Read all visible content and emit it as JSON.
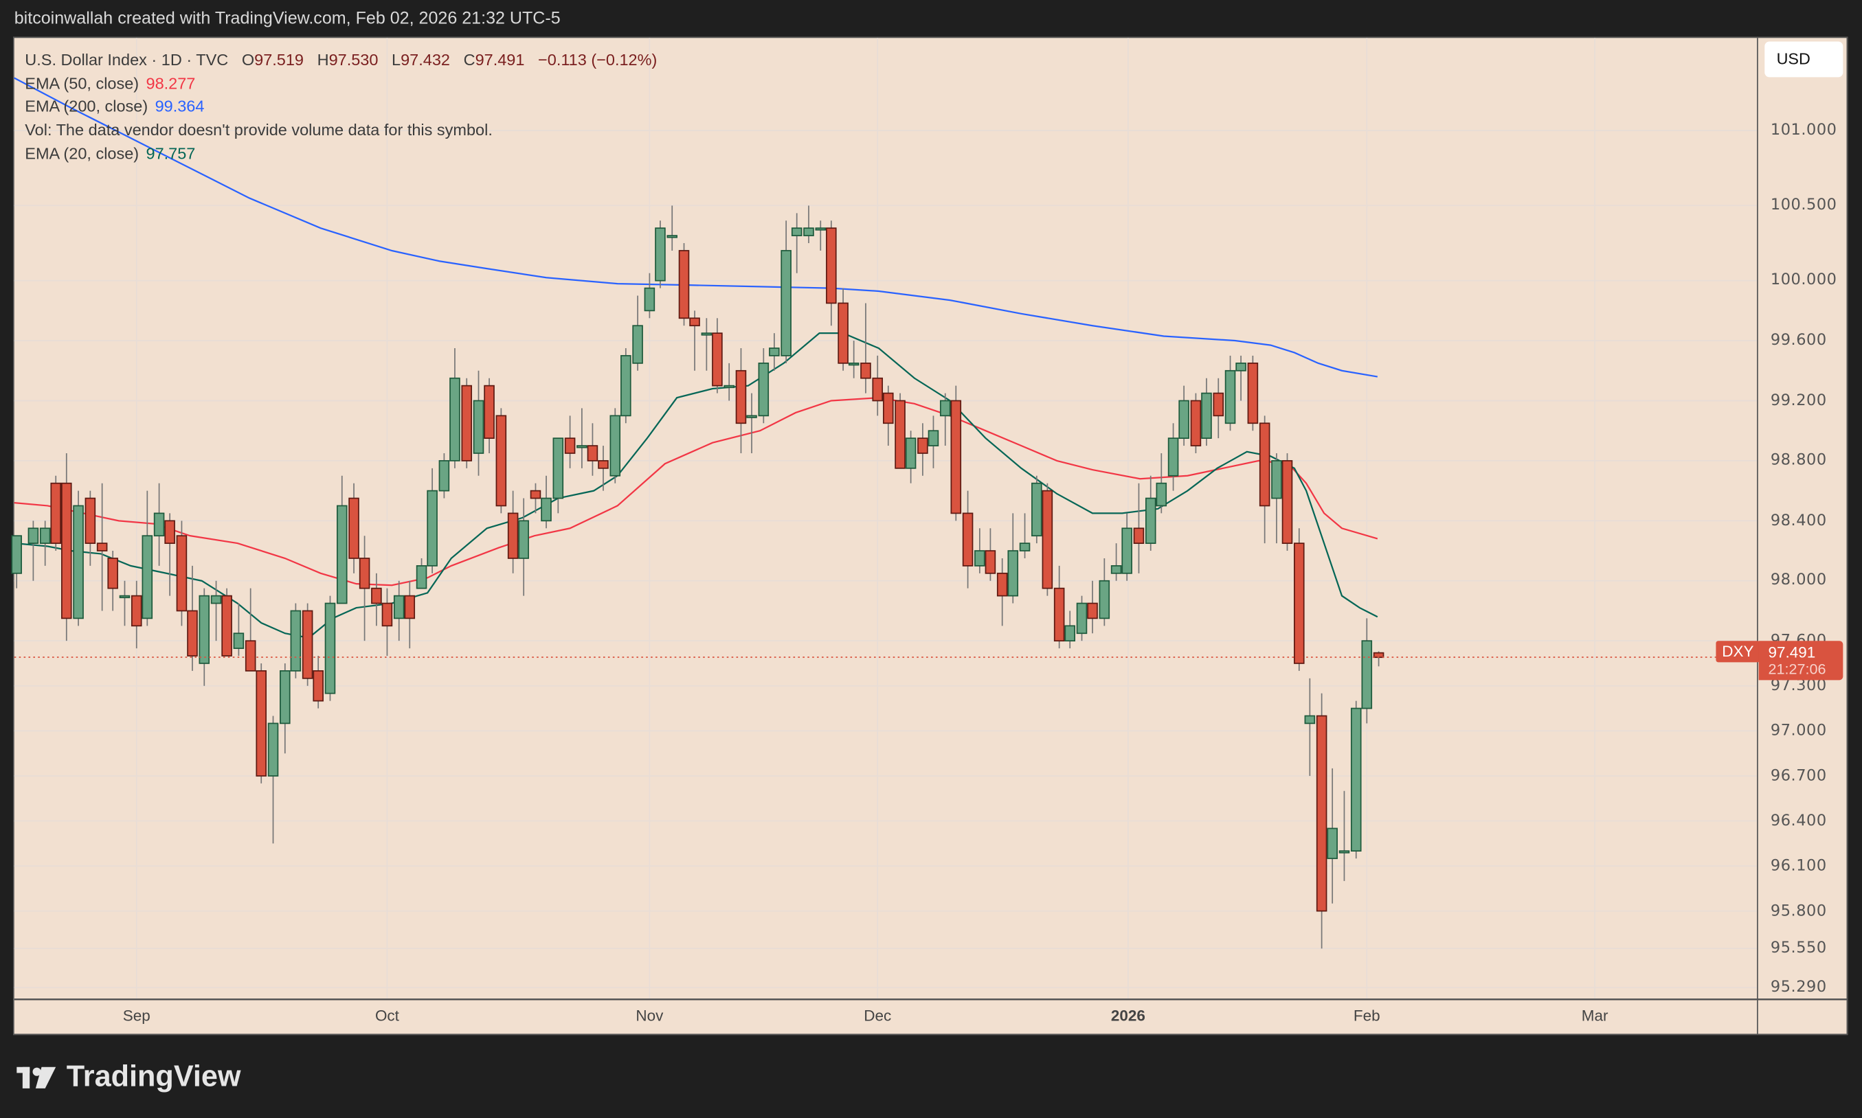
{
  "credit": "bitcoinwallah created with TradingView.com, Feb 02, 2026 21:32 UTC-5",
  "legend": {
    "symbol": "U.S. Dollar Index · 1D · TVC",
    "open_label": "O",
    "open": "97.519",
    "high_label": "H",
    "high": "97.530",
    "low_label": "L",
    "low": "97.432",
    "close_label": "C",
    "close": "97.491",
    "change": "−0.113 (−0.12%)",
    "ema50_label": "EMA (50, close)",
    "ema50_value": "98.277",
    "ema200_label": "EMA (200, close)",
    "ema200_value": "99.364",
    "vol_text": "Vol: The data vendor doesn't provide volume data for this symbol.",
    "ema20_label": "EMA (20, close)",
    "ema20_value": "97.757"
  },
  "currency_button": "USD",
  "price_badge": {
    "symbol": "DXY",
    "price": "97.491",
    "countdown": "21:27:06",
    "color": "#d9533f"
  },
  "brand": "TradingView",
  "colors": {
    "background": "#f2e0d0",
    "bull": "#6aa584",
    "bull_border": "#1e5a3c",
    "bear": "#d9533f",
    "bear_border": "#5e1a12",
    "wick": "#777777",
    "ema20": "#056656",
    "ema50": "#f23645",
    "ema200": "#2962ff",
    "grid": "#e8ddd6"
  },
  "chart_data": {
    "type": "candlestick",
    "title": "U.S. Dollar Index · 1D · TVC",
    "xlabel": "",
    "ylabel": "USD",
    "ylim": [
      95.25,
      101.6
    ],
    "y_ticks": [
      "101.000",
      "100.500",
      "100.000",
      "99.600",
      "99.200",
      "98.800",
      "98.400",
      "98.000",
      "97.600",
      "97.300",
      "97.000",
      "96.700",
      "96.400",
      "96.100",
      "95.800",
      "95.550",
      "95.290"
    ],
    "x_ticks": [
      {
        "label": "Sep",
        "x": 115
      },
      {
        "label": "Oct",
        "x": 326
      },
      {
        "label": "Nov",
        "x": 547
      },
      {
        "label": "Dec",
        "x": 739
      },
      {
        "label": "2026",
        "x": 950,
        "bold": true
      },
      {
        "label": "Feb",
        "x": 1151
      },
      {
        "label": "Mar",
        "x": 1343
      }
    ],
    "grid": true,
    "last_price": 97.491,
    "candles": [
      [
        14,
        98.05,
        98.3,
        97.95,
        98.25
      ],
      [
        28,
        98.25,
        98.35,
        98.0,
        98.4
      ],
      [
        38,
        98.25,
        98.35,
        98.1,
        98.4
      ],
      [
        47,
        98.65,
        98.25,
        98.2,
        98.7
      ],
      [
        56,
        98.65,
        97.75,
        97.6,
        98.85
      ],
      [
        66,
        97.75,
        98.5,
        97.7,
        98.6
      ],
      [
        76,
        98.55,
        98.25,
        98.1,
        98.6
      ],
      [
        86,
        98.25,
        98.2,
        97.8,
        98.65
      ],
      [
        95,
        98.15,
        97.95,
        97.8,
        98.2
      ],
      [
        105,
        97.9,
        97.9,
        97.7,
        98.0
      ],
      [
        115,
        97.9,
        97.7,
        97.55,
        98.0
      ],
      [
        124,
        97.75,
        98.3,
        97.7,
        98.6
      ],
      [
        134,
        98.3,
        98.45,
        98.1,
        98.65
      ],
      [
        143,
        98.4,
        98.25,
        97.9,
        98.45
      ],
      [
        153,
        98.3,
        97.8,
        97.7,
        98.4
      ],
      [
        162,
        97.8,
        97.5,
        97.4,
        98.1
      ],
      [
        172,
        97.45,
        97.9,
        97.3,
        97.95
      ],
      [
        182,
        97.85,
        97.9,
        97.6,
        98.0
      ],
      [
        191,
        97.9,
        97.5,
        97.5,
        97.95
      ],
      [
        201,
        97.55,
        97.65,
        97.5,
        97.85
      ],
      [
        211,
        97.6,
        97.4,
        97.4,
        97.95
      ],
      [
        220,
        97.4,
        96.7,
        96.65,
        97.45
      ],
      [
        230,
        96.7,
        97.05,
        96.25,
        97.1
      ],
      [
        240,
        97.05,
        97.4,
        96.85,
        97.45
      ],
      [
        249,
        97.4,
        97.8,
        97.35,
        97.85
      ],
      [
        259,
        97.8,
        97.35,
        97.3,
        97.85
      ],
      [
        268,
        97.4,
        97.2,
        97.15,
        97.5
      ],
      [
        278,
        97.25,
        97.85,
        97.2,
        97.9
      ],
      [
        288,
        97.85,
        98.5,
        97.85,
        98.7
      ],
      [
        298,
        98.55,
        98.15,
        98.05,
        98.65
      ],
      [
        307,
        98.15,
        97.95,
        97.6,
        98.3
      ],
      [
        317,
        97.95,
        97.85,
        97.7,
        98.05
      ],
      [
        326,
        97.85,
        97.7,
        97.5,
        97.95
      ],
      [
        336,
        97.75,
        97.9,
        97.6,
        98.0
      ],
      [
        345,
        97.9,
        97.75,
        97.55,
        98.0
      ],
      [
        355,
        97.95,
        98.1,
        97.95,
        98.15
      ],
      [
        364,
        98.1,
        98.6,
        98.05,
        98.75
      ],
      [
        374,
        98.6,
        98.8,
        98.55,
        98.85
      ],
      [
        383,
        98.8,
        99.35,
        98.75,
        99.55
      ],
      [
        393,
        99.3,
        98.8,
        98.75,
        99.35
      ],
      [
        403,
        98.85,
        99.2,
        98.7,
        99.4
      ],
      [
        412,
        99.3,
        98.95,
        98.85,
        99.35
      ],
      [
        422,
        99.1,
        98.5,
        98.45,
        99.15
      ],
      [
        432,
        98.45,
        98.15,
        98.05,
        98.6
      ],
      [
        441,
        98.15,
        98.4,
        97.9,
        98.55
      ],
      [
        451,
        98.6,
        98.55,
        98.45,
        98.65
      ],
      [
        460,
        98.4,
        98.55,
        98.35,
        98.7
      ],
      [
        470,
        98.55,
        98.95,
        98.45,
        98.95
      ],
      [
        480,
        98.95,
        98.85,
        98.75,
        99.1
      ],
      [
        490,
        98.9,
        98.9,
        98.75,
        99.15
      ],
      [
        499,
        98.9,
        98.8,
        98.7,
        99.05
      ],
      [
        508,
        98.8,
        98.75,
        98.6,
        98.9
      ],
      [
        518,
        98.7,
        99.1,
        98.65,
        99.15
      ],
      [
        527,
        99.1,
        99.5,
        99.05,
        99.55
      ],
      [
        537,
        99.45,
        99.7,
        99.4,
        99.9
      ],
      [
        547,
        99.8,
        99.95,
        99.75,
        100.05
      ],
      [
        556,
        100.0,
        100.35,
        99.95,
        100.4
      ],
      [
        566,
        100.3,
        100.3,
        100.2,
        100.5
      ],
      [
        576,
        100.2,
        99.75,
        99.7,
        100.25
      ],
      [
        585,
        99.75,
        99.7,
        99.4,
        99.8
      ],
      [
        595,
        99.65,
        99.65,
        99.4,
        99.75
      ],
      [
        604,
        99.65,
        99.3,
        99.25,
        99.75
      ],
      [
        614,
        99.3,
        99.3,
        99.2,
        99.45
      ],
      [
        624,
        99.4,
        99.05,
        98.85,
        99.55
      ],
      [
        633,
        99.1,
        99.1,
        98.85,
        99.25
      ],
      [
        643,
        99.1,
        99.45,
        99.05,
        99.55
      ],
      [
        652,
        99.5,
        99.55,
        99.4,
        99.65
      ],
      [
        662,
        99.5,
        100.2,
        99.45,
        100.4
      ],
      [
        671,
        100.3,
        100.35,
        100.05,
        100.45
      ],
      [
        681,
        100.3,
        100.35,
        100.25,
        100.5
      ],
      [
        691,
        100.35,
        100.35,
        100.2,
        100.4
      ],
      [
        700,
        100.35,
        99.85,
        99.7,
        100.4
      ],
      [
        710,
        99.85,
        99.45,
        99.4,
        99.95
      ],
      [
        719,
        99.45,
        99.45,
        99.35,
        99.6
      ],
      [
        729,
        99.45,
        99.35,
        99.25,
        99.85
      ],
      [
        739,
        99.35,
        99.2,
        99.1,
        99.5
      ],
      [
        748,
        99.25,
        99.05,
        98.9,
        99.3
      ],
      [
        758,
        99.2,
        98.75,
        98.75,
        99.25
      ],
      [
        767,
        98.75,
        98.95,
        98.65,
        99.0
      ],
      [
        777,
        98.95,
        98.85,
        98.7,
        99.05
      ],
      [
        786,
        98.9,
        99.0,
        98.75,
        99.1
      ],
      [
        796,
        99.1,
        99.2,
        98.9,
        99.25
      ],
      [
        805,
        99.2,
        98.45,
        98.4,
        99.3
      ],
      [
        815,
        98.45,
        98.1,
        97.95,
        98.6
      ],
      [
        825,
        98.1,
        98.2,
        98.05,
        98.35
      ],
      [
        834,
        98.2,
        98.05,
        98.0,
        98.35
      ],
      [
        844,
        98.05,
        97.9,
        97.7,
        98.15
      ],
      [
        853,
        97.9,
        98.2,
        97.85,
        98.45
      ],
      [
        863,
        98.2,
        98.25,
        98.15,
        98.45
      ],
      [
        873,
        98.3,
        98.65,
        98.25,
        98.7
      ],
      [
        882,
        98.6,
        97.95,
        97.9,
        98.65
      ],
      [
        892,
        97.95,
        97.6,
        97.55,
        98.1
      ],
      [
        901,
        97.6,
        97.7,
        97.55,
        97.8
      ],
      [
        911,
        97.65,
        97.85,
        97.6,
        97.9
      ],
      [
        920,
        97.85,
        97.75,
        97.65,
        98.0
      ],
      [
        930,
        97.75,
        98.0,
        97.7,
        98.15
      ],
      [
        940,
        98.05,
        98.1,
        98.0,
        98.25
      ],
      [
        949,
        98.05,
        98.35,
        98.0,
        98.45
      ],
      [
        959,
        98.35,
        98.25,
        98.05,
        98.65
      ],
      [
        969,
        98.25,
        98.55,
        98.2,
        98.7
      ],
      [
        978,
        98.5,
        98.65,
        98.45,
        98.85
      ],
      [
        988,
        98.7,
        98.95,
        98.6,
        99.05
      ],
      [
        997,
        98.95,
        99.2,
        98.9,
        99.3
      ],
      [
        1007,
        99.2,
        98.9,
        98.85,
        99.25
      ],
      [
        1016,
        98.95,
        99.25,
        98.9,
        99.35
      ],
      [
        1026,
        99.25,
        99.1,
        98.95,
        99.35
      ],
      [
        1036,
        99.05,
        99.4,
        99.0,
        99.5
      ],
      [
        1045,
        99.4,
        99.45,
        99.2,
        99.5
      ],
      [
        1055,
        99.45,
        99.05,
        99.0,
        99.5
      ],
      [
        1065,
        99.05,
        98.5,
        98.25,
        99.1
      ],
      [
        1075,
        98.55,
        98.8,
        98.25,
        98.85
      ],
      [
        1084,
        98.8,
        98.25,
        98.2,
        98.85
      ],
      [
        1094,
        98.25,
        97.45,
        97.4,
        98.35
      ],
      [
        1103,
        97.05,
        97.1,
        96.7,
        97.35
      ],
      [
        1113,
        97.1,
        95.8,
        95.55,
        97.25
      ],
      [
        1122,
        96.15,
        96.35,
        95.85,
        96.75
      ],
      [
        1132,
        96.2,
        96.2,
        96.0,
        96.6
      ],
      [
        1142,
        96.2,
        97.15,
        96.15,
        97.2
      ],
      [
        1151,
        97.15,
        97.6,
        97.05,
        97.75
      ],
      [
        1161,
        97.52,
        97.49,
        97.43,
        97.53
      ]
    ],
    "ema20": [
      [
        12,
        98.25
      ],
      [
        40,
        98.23
      ],
      [
        60,
        98.2
      ],
      [
        85,
        98.18
      ],
      [
        110,
        98.1
      ],
      [
        140,
        98.05
      ],
      [
        170,
        98.0
      ],
      [
        200,
        97.85
      ],
      [
        220,
        97.72
      ],
      [
        240,
        97.65
      ],
      [
        260,
        97.62
      ],
      [
        280,
        97.75
      ],
      [
        300,
        97.82
      ],
      [
        330,
        97.85
      ],
      [
        360,
        97.92
      ],
      [
        380,
        98.15
      ],
      [
        410,
        98.35
      ],
      [
        440,
        98.42
      ],
      [
        470,
        98.55
      ],
      [
        500,
        98.6
      ],
      [
        520,
        98.7
      ],
      [
        545,
        98.95
      ],
      [
        570,
        99.22
      ],
      [
        600,
        99.28
      ],
      [
        630,
        99.3
      ],
      [
        660,
        99.45
      ],
      [
        690,
        99.65
      ],
      [
        710,
        99.65
      ],
      [
        740,
        99.55
      ],
      [
        770,
        99.35
      ],
      [
        800,
        99.2
      ],
      [
        830,
        98.95
      ],
      [
        860,
        98.75
      ],
      [
        890,
        98.58
      ],
      [
        920,
        98.45
      ],
      [
        945,
        98.45
      ],
      [
        975,
        98.48
      ],
      [
        1000,
        98.6
      ],
      [
        1025,
        98.75
      ],
      [
        1050,
        98.86
      ],
      [
        1070,
        98.83
      ],
      [
        1090,
        98.75
      ],
      [
        1100,
        98.6
      ],
      [
        1115,
        98.25
      ],
      [
        1130,
        97.9
      ],
      [
        1145,
        97.82
      ],
      [
        1160,
        97.76
      ]
    ],
    "ema50": [
      [
        12,
        98.52
      ],
      [
        40,
        98.5
      ],
      [
        70,
        98.45
      ],
      [
        100,
        98.4
      ],
      [
        130,
        98.38
      ],
      [
        160,
        98.3
      ],
      [
        200,
        98.25
      ],
      [
        240,
        98.15
      ],
      [
        270,
        98.05
      ],
      [
        300,
        97.98
      ],
      [
        330,
        97.97
      ],
      [
        360,
        98.02
      ],
      [
        380,
        98.1
      ],
      [
        420,
        98.22
      ],
      [
        450,
        98.3
      ],
      [
        480,
        98.35
      ],
      [
        520,
        98.5
      ],
      [
        560,
        98.78
      ],
      [
        600,
        98.92
      ],
      [
        640,
        99.0
      ],
      [
        670,
        99.12
      ],
      [
        700,
        99.2
      ],
      [
        740,
        99.22
      ],
      [
        770,
        99.18
      ],
      [
        800,
        99.1
      ],
      [
        830,
        99.0
      ],
      [
        860,
        98.9
      ],
      [
        890,
        98.8
      ],
      [
        920,
        98.74
      ],
      [
        960,
        98.68
      ],
      [
        1000,
        98.7
      ],
      [
        1030,
        98.75
      ],
      [
        1060,
        98.8
      ],
      [
        1085,
        98.78
      ],
      [
        1100,
        98.65
      ],
      [
        1115,
        98.45
      ],
      [
        1130,
        98.35
      ],
      [
        1160,
        98.28
      ]
    ],
    "ema200": [
      [
        12,
        101.35
      ],
      [
        60,
        101.15
      ],
      [
        110,
        100.95
      ],
      [
        160,
        100.75
      ],
      [
        210,
        100.55
      ],
      [
        270,
        100.35
      ],
      [
        330,
        100.2
      ],
      [
        370,
        100.13
      ],
      [
        410,
        100.08
      ],
      [
        460,
        100.02
      ],
      [
        520,
        99.98
      ],
      [
        580,
        99.97
      ],
      [
        640,
        99.96
      ],
      [
        700,
        99.95
      ],
      [
        740,
        99.93
      ],
      [
        800,
        99.87
      ],
      [
        860,
        99.78
      ],
      [
        920,
        99.7
      ],
      [
        980,
        99.63
      ],
      [
        1040,
        99.6
      ],
      [
        1070,
        99.57
      ],
      [
        1090,
        99.52
      ],
      [
        1110,
        99.45
      ],
      [
        1130,
        99.4
      ],
      [
        1160,
        99.36
      ]
    ]
  }
}
